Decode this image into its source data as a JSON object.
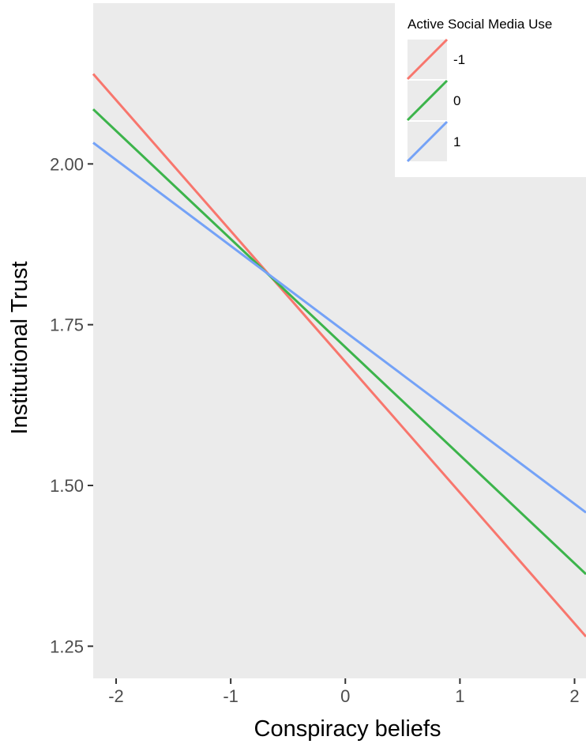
{
  "chart_data": {
    "type": "line",
    "title": "",
    "xlabel": "Conspiracy beliefs",
    "ylabel": "Institutional Trust",
    "xlim": [
      -2.2,
      2.1
    ],
    "ylim": [
      1.2,
      2.25
    ],
    "x_ticks": [
      -2,
      -1,
      0,
      1,
      2
    ],
    "x_tick_labels": [
      "-2",
      "-1",
      "0",
      "1",
      "2"
    ],
    "y_ticks": [
      1.25,
      1.5,
      1.75,
      2.0
    ],
    "y_tick_labels": [
      "1.25",
      "1.50",
      "1.75",
      "2.00"
    ],
    "grid": false,
    "legend": {
      "title": "Active Social Media Use",
      "position": "top-right"
    },
    "series": [
      {
        "name": "-1",
        "color": "#f8766d",
        "x": [
          -2.2,
          2.1
        ],
        "y": [
          2.14,
          1.265
        ]
      },
      {
        "name": "0",
        "color": "#3cb44b",
        "x": [
          -2.2,
          2.1
        ],
        "y": [
          2.085,
          1.362
        ]
      },
      {
        "name": "1",
        "color": "#74a2f7",
        "x": [
          -2.2,
          2.1
        ],
        "y": [
          2.033,
          1.458
        ]
      }
    ],
    "colors": {
      "panel_background": "#ebebeb",
      "legend_key_background": "#ebebeb",
      "tick_mark": "#333333"
    }
  }
}
